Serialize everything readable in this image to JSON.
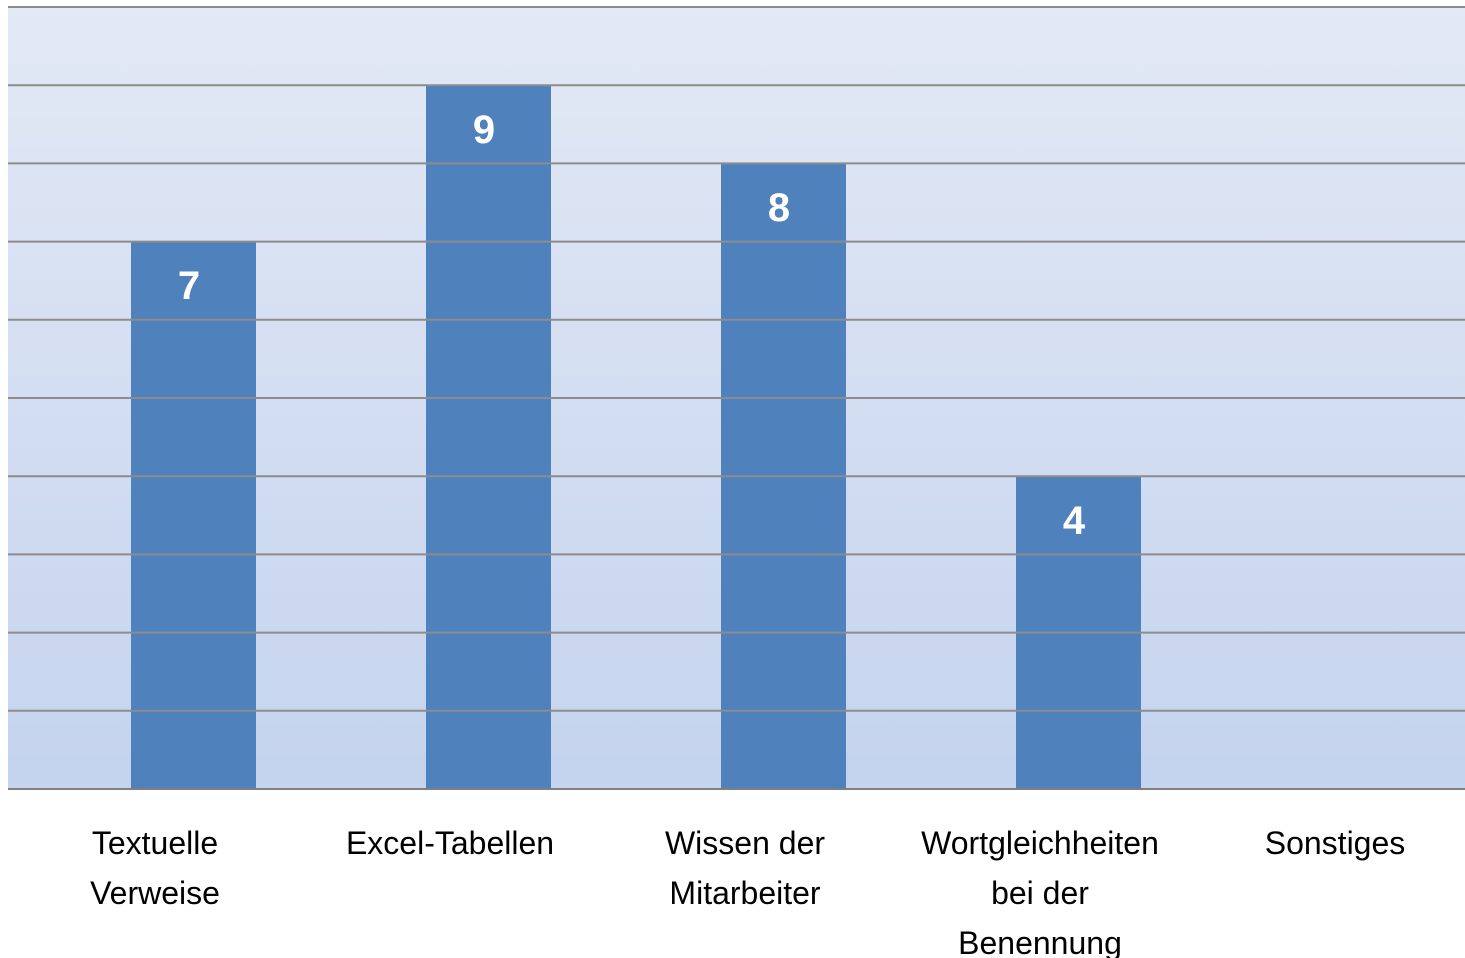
{
  "chart_data": {
    "type": "bar",
    "categories": [
      "Textuelle\nVerweise",
      "Excel-Tabellen",
      "Wissen der\nMitarbeiter",
      "Wortgleichheiten\nbei der\nBenennung",
      "Sonstiges"
    ],
    "values": [
      7,
      9,
      8,
      4,
      0
    ],
    "color": "#4f81bd",
    "ylim": [
      0,
      10
    ],
    "yticks": [
      0,
      1,
      2,
      3,
      4,
      5,
      6,
      7,
      8,
      9,
      10
    ],
    "grid": true
  }
}
